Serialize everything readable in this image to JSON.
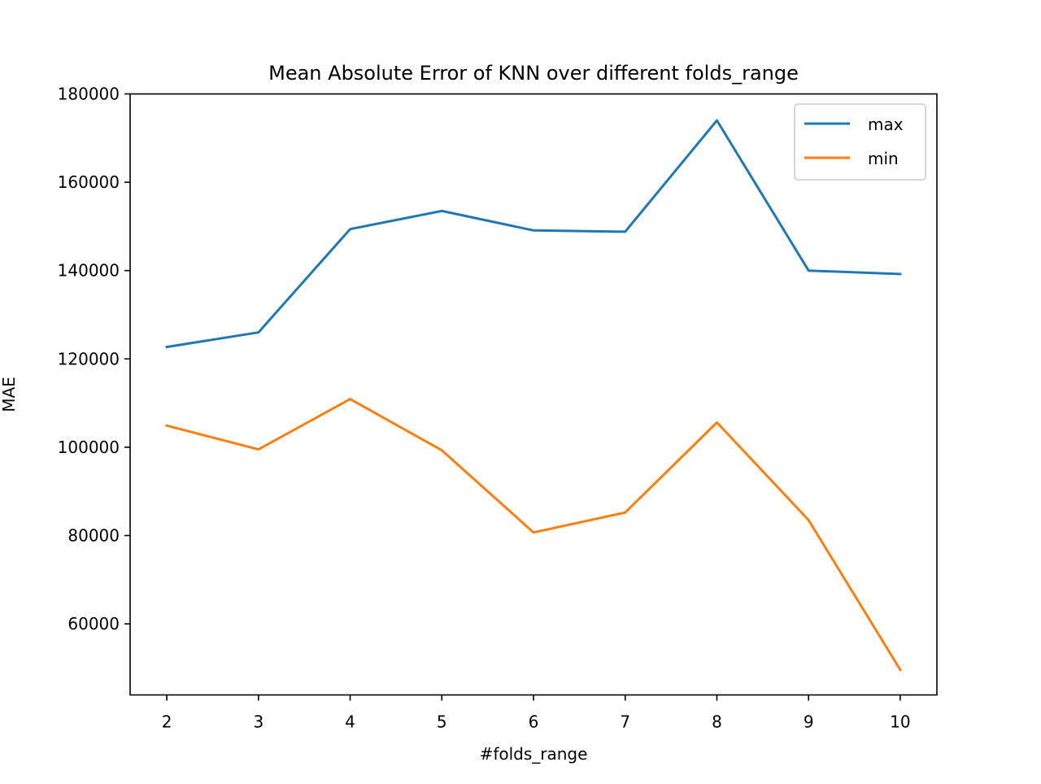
{
  "chart_data": {
    "type": "line",
    "title": "Mean Absolute Error of KNN over different folds_range",
    "xlabel": "#folds_range",
    "ylabel": "MAE",
    "x": [
      2,
      3,
      4,
      5,
      6,
      7,
      8,
      9,
      10
    ],
    "xlim": [
      1.6,
      10.4
    ],
    "ylim": [
      43900,
      180000
    ],
    "xticks": [
      "2",
      "3",
      "4",
      "5",
      "6",
      "7",
      "8",
      "9",
      "10"
    ],
    "yticks": [
      60000,
      80000,
      100000,
      120000,
      140000,
      160000,
      180000
    ],
    "ytick_labels": [
      "60000",
      "80000",
      "100000",
      "120000",
      "140000",
      "160000",
      "180000"
    ],
    "grid": false,
    "legend_position": "upper right",
    "series": [
      {
        "name": "max",
        "color": "#1f77b4",
        "values": [
          122700,
          126000,
          149400,
          153500,
          149100,
          148800,
          174000,
          140000,
          139200
        ]
      },
      {
        "name": "min",
        "color": "#ff7f0e",
        "values": [
          104900,
          99500,
          110900,
          99300,
          80700,
          85200,
          105600,
          83500,
          49600
        ]
      }
    ]
  }
}
